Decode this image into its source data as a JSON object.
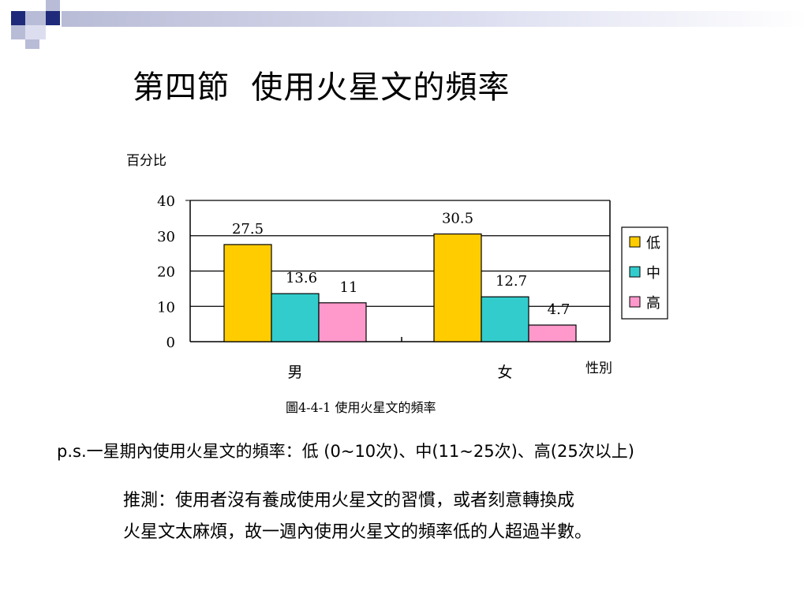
{
  "slide": {
    "title": "第四節  使用火星文的頻率",
    "note": "p.s.一星期內使用火星文的頻率：低 (0~10次)、中(11~25次)、高(25次以上)",
    "conclusion_line1": "推測：使用者沒有養成使用火星文的習慣，或者刻意轉換成",
    "conclusion_line2": "火星文太麻煩，故一週內使用火星文的頻率低的人超過半數。",
    "colors": {
      "accent_dark": "#1f2a7a",
      "accent_light": "#b9bcd6"
    }
  },
  "chart_data": {
    "type": "bar",
    "ylabel": "百分比",
    "xlabel": "性別",
    "caption": "圖4-4-1 使用火星文的頻率",
    "categories": [
      "男",
      "女"
    ],
    "ylim": [
      0,
      40
    ],
    "yticks": [
      "40",
      "30",
      "20",
      "10",
      "0"
    ],
    "grid": true,
    "legend_position": "right",
    "series": [
      {
        "name": "低",
        "values": [
          27.5,
          30.5
        ],
        "color": "#ffcc00"
      },
      {
        "name": "中",
        "values": [
          13.6,
          12.7
        ],
        "color": "#33cccc"
      },
      {
        "name": "高",
        "values": [
          11,
          4.7
        ],
        "color": "#ff99cc"
      }
    ]
  }
}
